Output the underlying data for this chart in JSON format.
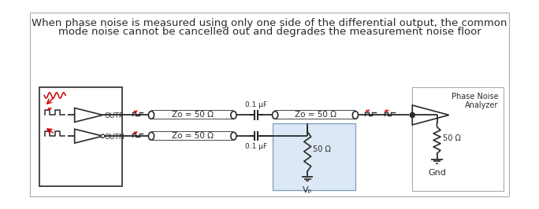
{
  "title_line1": "When phase noise is measured using only one side of the differential output, the common",
  "title_line2": "mode noise cannot be cancelled out and degrades the measurement noise floor",
  "title_fontsize": 9.5,
  "bg_color": "#ffffff",
  "box_color": "#dce8f5",
  "line_color": "#2a2a2a",
  "red_color": "#cc0000",
  "label_outp": "OUTP",
  "label_outn": "OUTN",
  "label_zo1": "Zo = 50 Ω",
  "label_zo2": "Zo = 50 Ω",
  "label_zo3": "Zo = 50 Ω",
  "label_cap1": "0.1 μF",
  "label_cap2": "0.1 μF",
  "label_r1": "50 Ω",
  "label_r2": "50 Ω",
  "label_vt": "Vₚ",
  "label_gnd": "Gnd",
  "label_pna": "Phase Noise\nAnalyzer"
}
